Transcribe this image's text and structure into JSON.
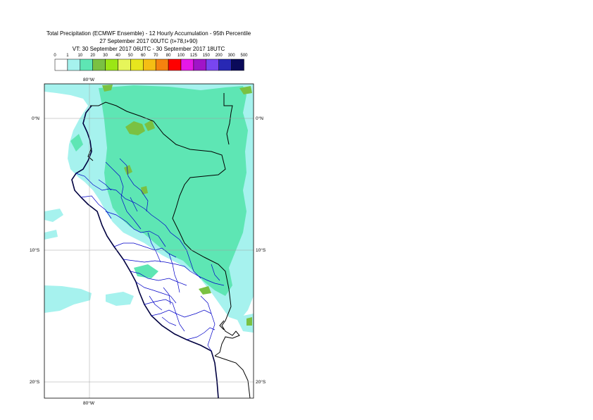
{
  "title": {
    "line1": "Total Precipitation (ECMWF Ensemble) - 12 Hourly Accumulation - 95th Percentile",
    "line2": "27 September 2017 00UTC (t+78,t+90)",
    "line3": "VT: 30 September 2017 06UTC - 30 September 2017 18UTC"
  },
  "legend": {
    "ticks": [
      "0",
      "1",
      "10",
      "20",
      "30",
      "40",
      "50",
      "60",
      "70",
      "80",
      "100",
      "125",
      "150",
      "200",
      "300",
      "500"
    ],
    "colors": [
      "#ffffff",
      "#a6f2ee",
      "#5ee6b4",
      "#7ac142",
      "#9be615",
      "#e6f55a",
      "#e6e61e",
      "#f5be14",
      "#f5820f",
      "#ff0000",
      "#e619e6",
      "#a014c8",
      "#7846f0",
      "#2828b4",
      "#0a0a5a"
    ]
  },
  "map": {
    "colors": {
      "land_bg": "#ffffff",
      "light": "#a6f2ee",
      "medium": "#5ee6b4",
      "dark": "#7ac142",
      "bright": "#9be615",
      "coast": "#000040",
      "border": "#000000",
      "region": "#0000c8",
      "grid": "#a0a0a0"
    },
    "labels": {
      "lon_top": "80°W",
      "lon_bottom": "80°W",
      "lat_0_left": "0°N",
      "lat_0_right": "0°N",
      "lat_10_left": "10°S",
      "lat_10_right": "10°S",
      "lat_20_left": "20°S",
      "lat_20_right": "20°S"
    }
  }
}
